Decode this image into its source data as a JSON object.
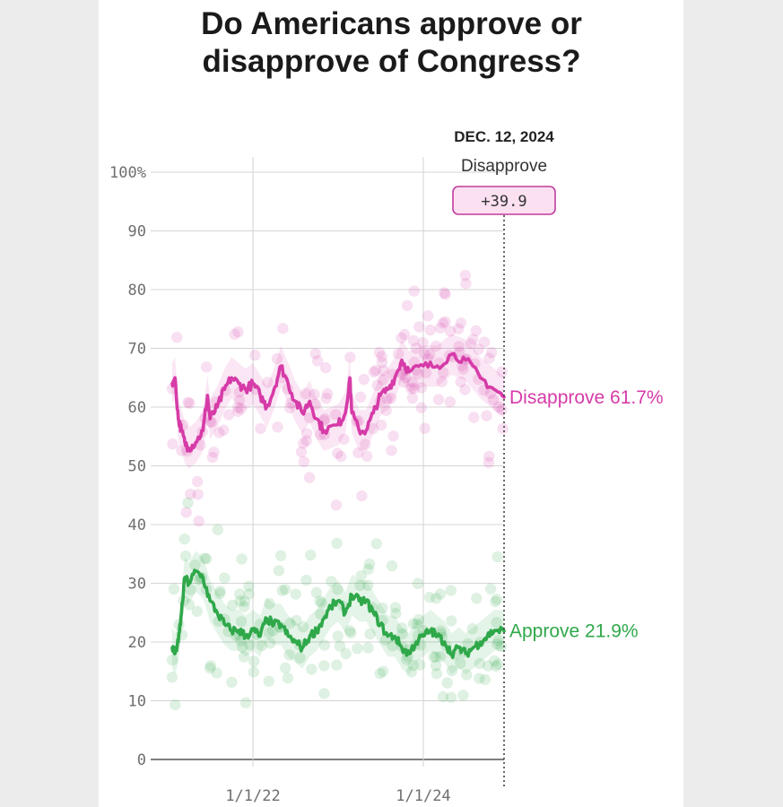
{
  "chart_data": {
    "type": "line",
    "title": "Do Americans approve or disapprove of Congress?",
    "xlabel": "",
    "ylabel": "",
    "ylim": [
      0,
      100
    ],
    "xlim": [
      "2021-01-20",
      "2024-12-12"
    ],
    "y_ticks": [
      "0",
      "10",
      "20",
      "30",
      "40",
      "50",
      "60",
      "70",
      "80",
      "90",
      "100%"
    ],
    "x_ticks": [
      {
        "date": "2022-01-01",
        "label": "1/1/22"
      },
      {
        "date": "2024-01-01",
        "label": "1/1/24"
      }
    ],
    "grid": true,
    "marker": {
      "date_label": "DEC. 12, 2024",
      "series_label": "Disapprove",
      "margin_label": "+39.9"
    },
    "series": [
      {
        "name": "Disapprove",
        "color": "#d63ba8",
        "end_label": "Disapprove 61.7%",
        "points": [
          [
            "2021-01-20",
            64
          ],
          [
            "2021-02-01",
            65
          ],
          [
            "2021-02-15",
            58
          ],
          [
            "2021-03-01",
            56
          ],
          [
            "2021-03-15",
            54
          ],
          [
            "2021-04-01",
            53
          ],
          [
            "2021-05-01",
            54
          ],
          [
            "2021-06-01",
            56
          ],
          [
            "2021-06-20",
            62
          ],
          [
            "2021-07-01",
            58
          ],
          [
            "2021-08-01",
            60
          ],
          [
            "2021-09-01",
            63
          ],
          [
            "2021-10-01",
            65
          ],
          [
            "2021-11-01",
            64
          ],
          [
            "2021-12-01",
            63
          ],
          [
            "2022-01-01",
            64
          ],
          [
            "2022-02-01",
            62
          ],
          [
            "2022-03-01",
            60
          ],
          [
            "2022-04-01",
            63
          ],
          [
            "2022-05-01",
            67
          ],
          [
            "2022-06-01",
            64
          ],
          [
            "2022-07-01",
            61
          ],
          [
            "2022-08-01",
            59
          ],
          [
            "2022-09-01",
            61
          ],
          [
            "2022-10-01",
            58
          ],
          [
            "2022-11-01",
            56
          ],
          [
            "2023-01-01",
            57
          ],
          [
            "2023-02-01",
            59
          ],
          [
            "2023-02-20",
            65
          ],
          [
            "2023-03-01",
            59
          ],
          [
            "2023-04-01",
            56
          ],
          [
            "2023-05-01",
            56
          ],
          [
            "2023-06-01",
            59
          ],
          [
            "2023-07-01",
            62
          ],
          [
            "2023-08-01",
            63
          ],
          [
            "2023-09-01",
            65
          ],
          [
            "2023-10-01",
            68
          ],
          [
            "2023-11-01",
            66
          ],
          [
            "2024-01-01",
            67
          ],
          [
            "2024-03-01",
            67
          ],
          [
            "2024-05-01",
            69
          ],
          [
            "2024-07-01",
            68
          ],
          [
            "2024-09-01",
            65
          ],
          [
            "2024-11-01",
            63
          ],
          [
            "2024-12-12",
            61.7
          ]
        ]
      },
      {
        "name": "Approve",
        "color": "#2fa84a",
        "end_label": "Approve 21.9%",
        "points": [
          [
            "2021-01-20",
            19
          ],
          [
            "2021-02-01",
            18
          ],
          [
            "2021-02-15",
            20
          ],
          [
            "2021-03-01",
            25
          ],
          [
            "2021-03-15",
            31
          ],
          [
            "2021-04-01",
            30
          ],
          [
            "2021-05-01",
            32
          ],
          [
            "2021-06-01",
            31
          ],
          [
            "2021-07-01",
            27
          ],
          [
            "2021-08-01",
            25
          ],
          [
            "2021-09-01",
            23
          ],
          [
            "2021-10-01",
            22
          ],
          [
            "2021-11-01",
            22
          ],
          [
            "2021-12-01",
            21
          ],
          [
            "2022-01-01",
            22
          ],
          [
            "2022-02-01",
            21
          ],
          [
            "2022-03-01",
            24
          ],
          [
            "2022-04-01",
            23
          ],
          [
            "2022-05-01",
            23
          ],
          [
            "2022-06-01",
            21
          ],
          [
            "2022-07-01",
            20
          ],
          [
            "2022-08-01",
            19
          ],
          [
            "2022-09-01",
            21
          ],
          [
            "2022-10-01",
            22
          ],
          [
            "2022-11-01",
            24
          ],
          [
            "2022-12-01",
            26
          ],
          [
            "2023-01-01",
            27
          ],
          [
            "2023-02-01",
            25
          ],
          [
            "2023-03-01",
            28
          ],
          [
            "2023-04-01",
            27
          ],
          [
            "2023-05-01",
            27
          ],
          [
            "2023-06-01",
            25
          ],
          [
            "2023-07-01",
            23
          ],
          [
            "2023-08-01",
            21
          ],
          [
            "2023-09-01",
            21
          ],
          [
            "2023-10-01",
            19
          ],
          [
            "2023-11-01",
            18
          ],
          [
            "2023-12-01",
            20
          ],
          [
            "2024-01-01",
            21
          ],
          [
            "2024-02-01",
            22
          ],
          [
            "2024-03-01",
            21
          ],
          [
            "2024-04-01",
            20
          ],
          [
            "2024-05-01",
            18
          ],
          [
            "2024-06-01",
            19
          ],
          [
            "2024-07-01",
            18
          ],
          [
            "2024-08-01",
            19
          ],
          [
            "2024-09-01",
            20
          ],
          [
            "2024-10-01",
            21
          ],
          [
            "2024-11-01",
            22
          ],
          [
            "2024-12-12",
            21.9
          ]
        ]
      }
    ]
  }
}
